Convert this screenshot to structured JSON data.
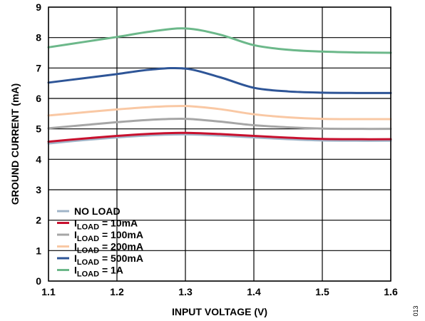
{
  "chart_data": {
    "type": "line",
    "xlabel": "INPUT VOLTAGE (V)",
    "ylabel": "GROUND CURRENT (mA)",
    "xlim": [
      1.1,
      1.6
    ],
    "ylim": [
      0,
      9
    ],
    "xticks": [
      "1.1",
      "1.2",
      "1.3",
      "1.4",
      "1.5",
      "1.6"
    ],
    "yticks": [
      "0",
      "1",
      "2",
      "3",
      "4",
      "5",
      "6",
      "7",
      "8",
      "9"
    ],
    "grid": true,
    "legend_position": "bottom-left",
    "figure_id": "013",
    "series": [
      {
        "name": "NO LOAD",
        "legend": {
          "main": "NO LOAD",
          "sub": "",
          "rest": ""
        },
        "color": "#a0b4c8",
        "x": [
          1.1,
          1.15,
          1.2,
          1.25,
          1.3,
          1.35,
          1.4,
          1.45,
          1.5,
          1.55,
          1.6
        ],
        "y": [
          4.52,
          4.63,
          4.72,
          4.79,
          4.82,
          4.78,
          4.72,
          4.66,
          4.62,
          4.61,
          4.61
        ]
      },
      {
        "name": "ILOAD = 10mA",
        "legend": {
          "main": "I",
          "sub": "LOAD",
          "rest": " = 10mA"
        },
        "color": "#c8102e",
        "x": [
          1.1,
          1.15,
          1.2,
          1.25,
          1.3,
          1.35,
          1.4,
          1.45,
          1.5,
          1.55,
          1.6
        ],
        "y": [
          4.58,
          4.68,
          4.77,
          4.84,
          4.87,
          4.83,
          4.77,
          4.71,
          4.67,
          4.66,
          4.66
        ]
      },
      {
        "name": "ILOAD = 100mA",
        "legend": {
          "main": "I",
          "sub": "LOAD",
          "rest": " = 100mA"
        },
        "color": "#a6a6a6",
        "x": [
          1.1,
          1.15,
          1.2,
          1.25,
          1.3,
          1.35,
          1.4,
          1.45,
          1.5,
          1.55,
          1.6
        ],
        "y": [
          5.02,
          5.12,
          5.22,
          5.3,
          5.33,
          5.24,
          5.12,
          5.05,
          5.01,
          5.0,
          5.0
        ]
      },
      {
        "name": "ILOAD = 200mA",
        "legend": {
          "main": "I",
          "sub": "LOAD",
          "rest": " = 200mA"
        },
        "color": "#f9c8a4",
        "x": [
          1.1,
          1.15,
          1.2,
          1.25,
          1.3,
          1.35,
          1.4,
          1.45,
          1.5,
          1.55,
          1.6
        ],
        "y": [
          5.44,
          5.54,
          5.64,
          5.72,
          5.75,
          5.65,
          5.48,
          5.38,
          5.33,
          5.32,
          5.32
        ]
      },
      {
        "name": "ILOAD = 500mA",
        "legend": {
          "main": "I",
          "sub": "LOAD",
          "rest": " = 500mA"
        },
        "color": "#2e5597",
        "x": [
          1.1,
          1.15,
          1.2,
          1.25,
          1.3,
          1.35,
          1.4,
          1.45,
          1.5,
          1.55,
          1.6
        ],
        "y": [
          6.52,
          6.66,
          6.8,
          6.95,
          6.98,
          6.7,
          6.35,
          6.23,
          6.19,
          6.18,
          6.18
        ]
      },
      {
        "name": "ILOAD = 1A",
        "legend": {
          "main": "I",
          "sub": "LOAD",
          "rest": " = 1A"
        },
        "color": "#6cb88a",
        "x": [
          1.1,
          1.15,
          1.2,
          1.25,
          1.3,
          1.35,
          1.4,
          1.45,
          1.5,
          1.55,
          1.6
        ],
        "y": [
          7.68,
          7.85,
          8.02,
          8.2,
          8.3,
          8.1,
          7.75,
          7.6,
          7.54,
          7.51,
          7.5
        ]
      }
    ]
  }
}
